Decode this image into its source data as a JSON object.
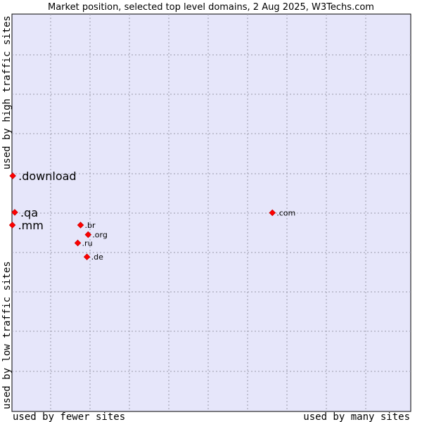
{
  "chart_data": {
    "type": "scatter",
    "title": "Market position, selected top level domains, 2 Aug 2025, W3Techs.com",
    "xlabel_left": "used by fewer sites",
    "xlabel_right": "used by many sites",
    "ylabel_bottom": "used by low traffic sites",
    "ylabel_top": "used by high traffic sites",
    "xlim": [
      0,
      100
    ],
    "ylim": [
      0,
      100
    ],
    "grid": true,
    "legend": "none",
    "marker_color": "#ff0000",
    "background_color": "#e6e6fa",
    "points": [
      {
        "label": ".download",
        "x": 0.2,
        "y": 59.3,
        "size": "large"
      },
      {
        "label": ".qa",
        "x": 0.7,
        "y": 50.1,
        "size": "large"
      },
      {
        "label": ".mm",
        "x": 0.1,
        "y": 46.9,
        "size": "large"
      },
      {
        "label": ".com",
        "x": 65.3,
        "y": 50.0,
        "size": "small"
      },
      {
        "label": ".br",
        "x": 17.2,
        "y": 46.9,
        "size": "small"
      },
      {
        "label": ".org",
        "x": 19.1,
        "y": 44.5,
        "size": "small"
      },
      {
        "label": ".ru",
        "x": 16.5,
        "y": 42.4,
        "size": "small"
      },
      {
        "label": ".de",
        "x": 18.8,
        "y": 38.9,
        "size": "small"
      }
    ]
  }
}
